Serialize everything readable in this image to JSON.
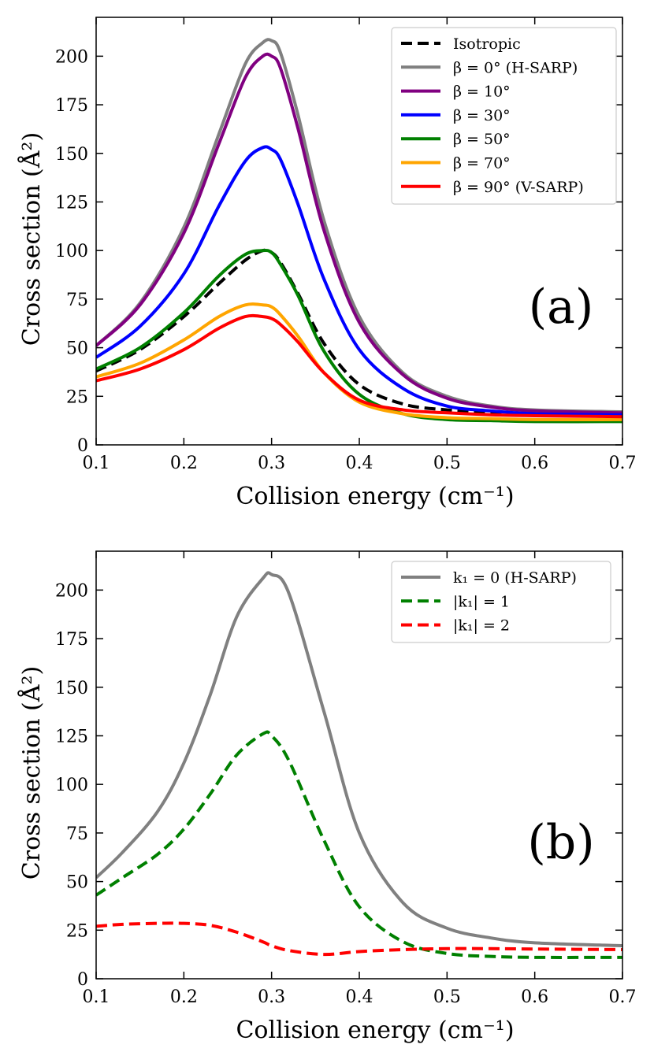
{
  "chart_data": [
    {
      "type": "line",
      "panel_label": "(a)",
      "xlabel": "Collision energy (cm⁻¹)",
      "ylabel": "Cross section (Å²)",
      "xlim": [
        0.1,
        0.7
      ],
      "ylim": [
        0,
        220
      ],
      "xticks": [
        0.1,
        0.2,
        0.3,
        0.4,
        0.5,
        0.6,
        0.7
      ],
      "xtick_labels": [
        "0.1",
        "0.2",
        "0.3",
        "0.4",
        "0.5",
        "0.6",
        "0.7"
      ],
      "yticks": [
        0,
        25,
        50,
        75,
        100,
        125,
        150,
        175,
        200
      ],
      "ytick_labels": [
        "0",
        "25",
        "50",
        "75",
        "100",
        "125",
        "150",
        "175",
        "200"
      ],
      "legend_position": "top-right",
      "x": [
        0.1,
        0.15,
        0.2,
        0.24,
        0.27,
        0.29,
        0.3,
        0.31,
        0.33,
        0.36,
        0.4,
        0.45,
        0.5,
        0.55,
        0.6,
        0.7
      ],
      "series": [
        {
          "name": "Isotropic",
          "color": "#000000",
          "dash": true,
          "values": [
            38,
            49,
            66,
            83,
            95,
            100,
            99,
            94,
            78,
            52,
            31,
            21,
            18,
            16.5,
            15.5,
            14.5
          ]
        },
        {
          "name": "β =   0° (H-SARP)",
          "color": "#808080",
          "dash": false,
          "values": [
            51,
            73,
            112,
            160,
            196,
            207,
            208,
            202,
            170,
            115,
            66,
            37,
            25,
            20,
            18,
            17
          ]
        },
        {
          "name": "β = 10°",
          "color": "#800080",
          "dash": false,
          "values": [
            51,
            72,
            109,
            155,
            189,
            200,
            200,
            194,
            163,
            110,
            63,
            36,
            24,
            19.5,
            17.5,
            16.5
          ]
        },
        {
          "name": "β = 30°",
          "color": "#0000ff",
          "dash": false,
          "values": [
            45,
            61,
            88,
            123,
            146,
            153,
            152,
            147,
            124,
            85,
            49,
            29,
            20,
            17.5,
            16,
            15.5
          ]
        },
        {
          "name": "β = 50°",
          "color": "#008000",
          "dash": false,
          "values": [
            39,
            50,
            68,
            87,
            98,
            100,
            99,
            93,
            77,
            48,
            26,
            16,
            13,
            12.5,
            12,
            12
          ]
        },
        {
          "name": "β = 70°",
          "color": "#ffa500",
          "dash": false,
          "values": [
            35,
            42,
            54,
            66,
            72,
            72,
            71,
            67,
            56,
            37,
            22,
            16,
            14,
            13.5,
            13,
            13
          ]
        },
        {
          "name": "β = 90° (V-SARP)",
          "color": "#ff0000",
          "dash": false,
          "values": [
            33,
            39,
            49,
            60,
            66,
            66,
            65,
            62,
            53,
            37,
            23,
            18,
            16.5,
            15.5,
            15,
            14.5
          ]
        }
      ]
    },
    {
      "type": "line",
      "panel_label": "(b)",
      "xlabel": "Collision energy (cm⁻¹)",
      "ylabel": "Cross section (Å²)",
      "xlim": [
        0.1,
        0.7
      ],
      "ylim": [
        0,
        220
      ],
      "xticks": [
        0.1,
        0.2,
        0.3,
        0.4,
        0.5,
        0.6,
        0.7
      ],
      "xtick_labels": [
        "0.1",
        "0.2",
        "0.3",
        "0.4",
        "0.5",
        "0.6",
        "0.7"
      ],
      "yticks": [
        0,
        25,
        50,
        75,
        100,
        125,
        150,
        175,
        200
      ],
      "ytick_labels": [
        "0",
        "25",
        "50",
        "75",
        "100",
        "125",
        "150",
        "175",
        "200"
      ],
      "legend_position": "top-right",
      "x": [
        0.1,
        0.13,
        0.17,
        0.2,
        0.23,
        0.26,
        0.29,
        0.3,
        0.32,
        0.36,
        0.4,
        0.45,
        0.5,
        0.55,
        0.6,
        0.7
      ],
      "series": [
        {
          "name": "k₁ = 0 (H-SARP)",
          "color": "#808080",
          "dash": false,
          "values": [
            52,
            65,
            86,
            111,
            146,
            186,
            206,
            208,
            198,
            137,
            75,
            39,
            26,
            21,
            18.5,
            17
          ]
        },
        {
          "name": "|k₁| = 1",
          "color": "#008000",
          "dash": true,
          "values": [
            43,
            52,
            64,
            77,
            95,
            115,
            126,
            125,
            112,
            71,
            37,
            19,
            13,
            11.5,
            11,
            11
          ]
        },
        {
          "name": "|k₁| = 2",
          "color": "#ff0000",
          "dash": true,
          "values": [
            27,
            28,
            28.5,
            28.5,
            27.5,
            24,
            19,
            17,
            14.5,
            12.5,
            14,
            15,
            15.5,
            15.5,
            15.3,
            15
          ]
        }
      ]
    }
  ]
}
